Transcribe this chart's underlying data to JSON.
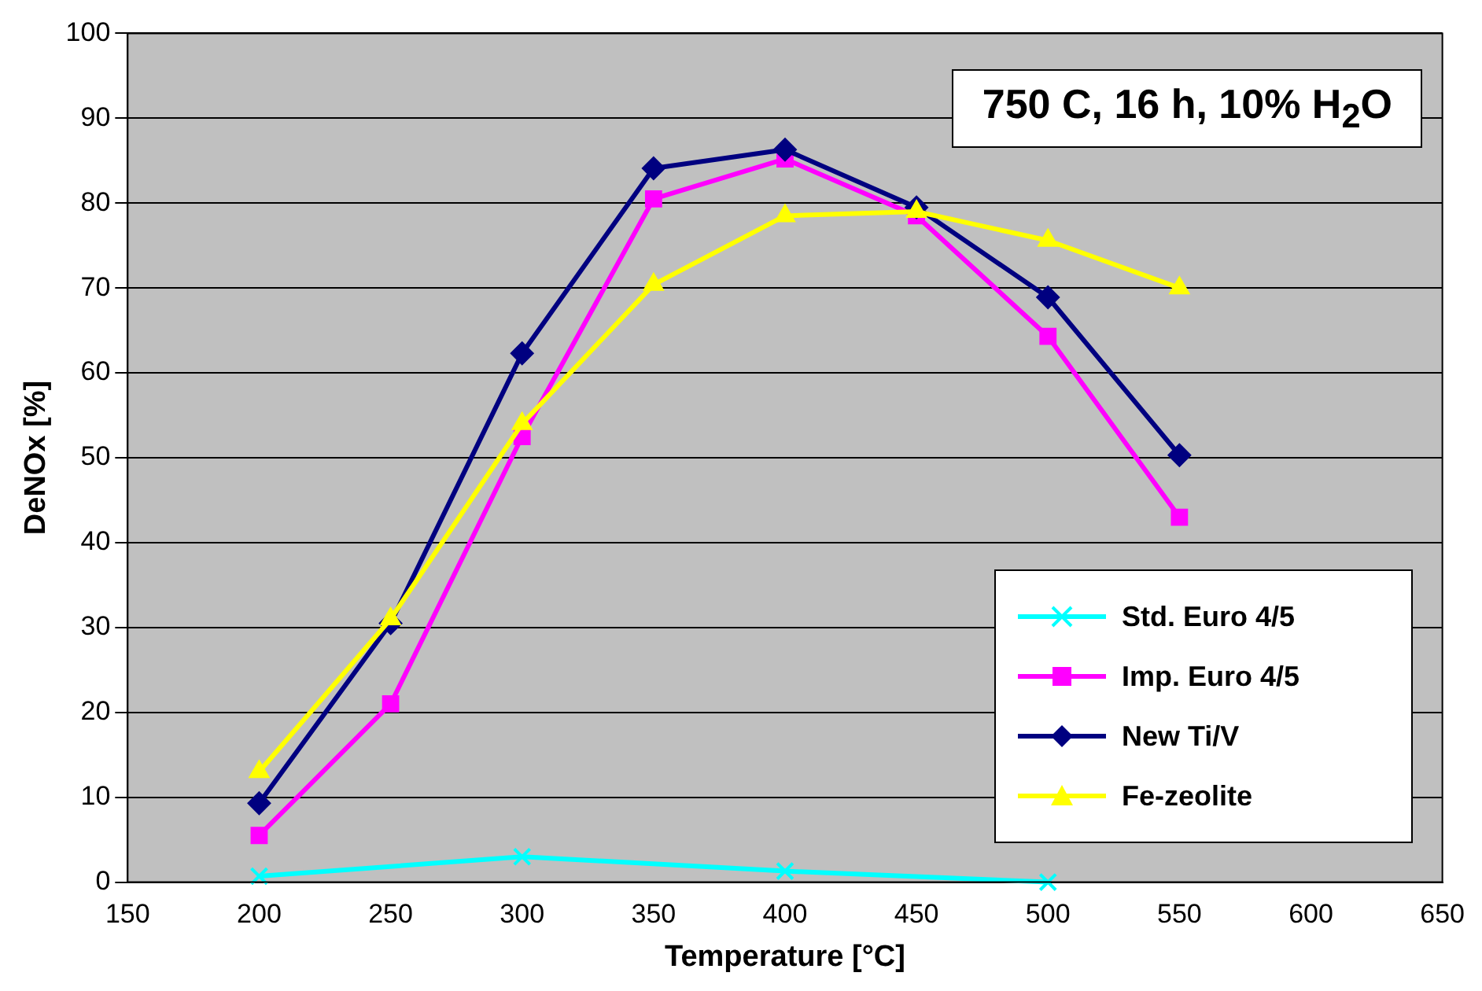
{
  "chart_data": {
    "type": "line",
    "xlabel": "Temperature [°C]",
    "ylabel": "DeNOx [%]",
    "annotations": [
      "750 C, 16 h, 10% H$_{2}$O"
    ],
    "xlim": [
      150,
      650
    ],
    "xticks": [
      150,
      200,
      250,
      300,
      350,
      400,
      450,
      500,
      550,
      600,
      650
    ],
    "ylim": [
      0,
      100
    ],
    "yticks": [
      0,
      10,
      20,
      30,
      40,
      50,
      60,
      70,
      80,
      90,
      100
    ],
    "grid": "y",
    "legend": "bottom right",
    "series": [
      {
        "name": "Std. Euro 4/5",
        "color": "#00ffff",
        "marker": "cross",
        "x": [
          200,
          300,
          400,
          500
        ],
        "values": [
          0.7,
          3,
          1.3,
          0
        ]
      },
      {
        "name": "Imp. Euro 4/5",
        "color": "#ff00ff",
        "marker": "square",
        "x": [
          200,
          250,
          300,
          350,
          400,
          450,
          500,
          550
        ],
        "values": [
          5.5,
          21,
          52.5,
          80.5,
          85.2,
          78.5,
          64.3,
          43
        ]
      },
      {
        "name": "New Ti/V",
        "color": "#000080",
        "marker": "diamond",
        "x": [
          200,
          250,
          300,
          350,
          400,
          450,
          500,
          550
        ],
        "values": [
          9.3,
          30.5,
          62.3,
          84.1,
          86.3,
          79.5,
          68.9,
          50.3
        ]
      },
      {
        "name": "Fe-zeolite",
        "color": "#ffff00",
        "marker": "triangle",
        "x": [
          200,
          250,
          300,
          350,
          400,
          450,
          500,
          550
        ],
        "values": [
          13,
          31,
          54,
          70.4,
          78.5,
          79,
          75.6,
          70
        ]
      }
    ]
  }
}
